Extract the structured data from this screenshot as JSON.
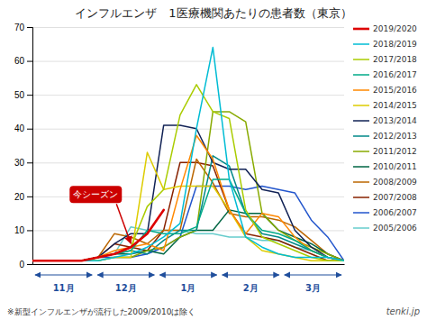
{
  "chart_data": {
    "type": "line",
    "title": "インフルエンザ　1医療機関あたりの患者数（東京）",
    "categories": [
      null,
      null,
      null,
      null,
      null,
      null,
      null,
      null,
      null,
      null,
      null,
      null,
      null,
      null,
      null,
      null,
      null,
      null,
      null,
      null
    ],
    "month_labels": [
      "11月",
      "12月",
      "1月",
      "2月",
      "3月"
    ],
    "annotation": "今シーズン",
    "footnote": "※新型インフルエンザが流行した2009/2010は除く",
    "credit": "tenki.jp",
    "ylim": [
      0,
      70
    ],
    "yticks": [
      0,
      10,
      20,
      30,
      40,
      50,
      60,
      70
    ],
    "grid": true,
    "legend": "right",
    "series": [
      {
        "name": "2019/2020",
        "color": "#dd0000",
        "values": [
          1,
          1,
          1,
          1,
          2,
          3,
          5,
          9,
          16,
          null,
          null,
          null,
          null,
          null,
          null,
          null,
          null,
          null,
          null,
          null
        ]
      },
      {
        "name": "2018/2019",
        "color": "#00bcd4",
        "values": [
          1,
          1,
          1,
          1,
          1,
          2,
          3,
          5,
          8,
          12,
          40,
          64,
          25,
          8,
          5,
          3,
          2,
          2,
          2,
          1
        ]
      },
      {
        "name": "2017/2018",
        "color": "#aacc00",
        "values": [
          1,
          1,
          1,
          1,
          2,
          3,
          5,
          17,
          22,
          44,
          53,
          45,
          43,
          16,
          8,
          6,
          4,
          2,
          1,
          1
        ]
      },
      {
        "name": "2016/2017",
        "color": "#00aa88",
        "values": [
          1,
          1,
          1,
          1,
          2,
          3,
          4,
          10,
          9,
          9,
          11,
          25,
          25,
          15,
          10,
          9,
          7,
          4,
          2,
          1
        ]
      },
      {
        "name": "2015/2016",
        "color": "#ff8800",
        "values": [
          1,
          1,
          1,
          1,
          2,
          4,
          5,
          6,
          4,
          22,
          38,
          31,
          16,
          9,
          15,
          14,
          8,
          4,
          2,
          1
        ]
      },
      {
        "name": "2014/2015",
        "color": "#ddcc00",
        "values": [
          1,
          1,
          1,
          1,
          1,
          2,
          2,
          33,
          22,
          23,
          23,
          23,
          16,
          8,
          4,
          3,
          2,
          1,
          1,
          1
        ]
      },
      {
        "name": "2013/2014",
        "color": "#112255",
        "values": [
          1,
          1,
          1,
          1,
          2,
          6,
          9,
          9,
          41,
          41,
          40,
          30,
          28,
          28,
          22,
          21,
          10,
          5,
          2,
          1
        ]
      },
      {
        "name": "2012/2013",
        "color": "#008888",
        "values": [
          1,
          1,
          1,
          1,
          2,
          3,
          4,
          3,
          7,
          10,
          10,
          32,
          29,
          15,
          9,
          8,
          6,
          4,
          2,
          1
        ]
      },
      {
        "name": "2011/2012",
        "color": "#88aa00",
        "values": [
          1,
          1,
          1,
          1,
          1,
          2,
          2,
          4,
          5,
          8,
          10,
          45,
          45,
          42,
          15,
          10,
          7,
          5,
          3,
          1
        ]
      },
      {
        "name": "2010/2011",
        "color": "#006644",
        "values": [
          1,
          1,
          1,
          1,
          2,
          3,
          3,
          4,
          3,
          8,
          10,
          10,
          16,
          15,
          15,
          10,
          8,
          6,
          3,
          1
        ]
      },
      {
        "name": "2008/2009",
        "color": "#bb6600",
        "values": [
          1,
          1,
          1,
          1,
          2,
          9,
          8,
          6,
          10,
          10,
          31,
          24,
          15,
          14,
          14,
          13,
          11,
          7,
          3,
          1
        ]
      },
      {
        "name": "2007/2008",
        "color": "#882200",
        "values": [
          1,
          1,
          1,
          1,
          2,
          6,
          5,
          4,
          10,
          30,
          30,
          29,
          16,
          9,
          8,
          7,
          5,
          3,
          1,
          1
        ]
      },
      {
        "name": "2006/2007",
        "color": "#2255cc",
        "values": [
          1,
          1,
          1,
          1,
          2,
          2,
          2,
          3,
          5,
          8,
          23,
          23,
          23,
          22,
          23,
          22,
          21,
          13,
          8,
          1
        ]
      },
      {
        "name": "2005/2006",
        "color": "#66cccc",
        "values": [
          1,
          1,
          1,
          1,
          2,
          3,
          11,
          10,
          10,
          10,
          9,
          9,
          8,
          8,
          7,
          7,
          5,
          4,
          2,
          1
        ]
      }
    ]
  }
}
